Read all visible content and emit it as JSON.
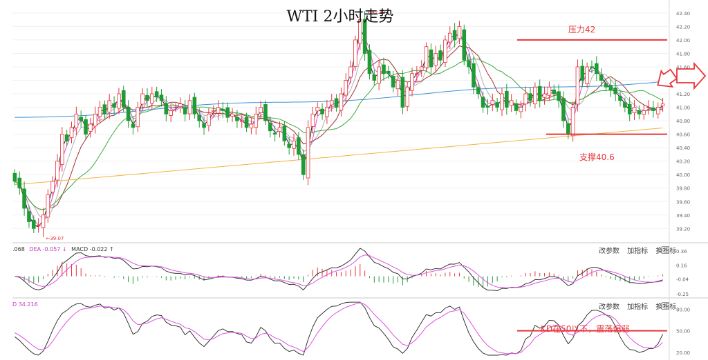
{
  "title": "WTI 2小时走势",
  "colors": {
    "up": "#e8343a",
    "down": "#1e9b34",
    "ma5": "#222222",
    "ma10": "#e050e0",
    "ma20": "#b0b0b0",
    "ma30": "#a03030",
    "ma60": "#3aaa3a",
    "ma120": "#3a8fd8",
    "ma250": "#f5b240",
    "annotation": "#e8343a"
  },
  "annotations": {
    "resistance_label": "压力42",
    "support_label": "支撑40.6",
    "kd_note": "KD在50以下，震荡偏弱"
  },
  "toolbars": {
    "macd": {
      "params": "改参数",
      "add": "加指标",
      "switch": "换指标",
      "close": "×"
    },
    "kd": {
      "params": "改参数",
      "add": "加指标",
      "switch": "换指标",
      "close": "×"
    }
  },
  "indicator_labels": {
    "macd_diff": ".068",
    "macd_dea": "DEA -0.057 ↓",
    "macd_value": "MACD -0.022 ↑",
    "kd_prefix": "D 34.216"
  },
  "chart_data": [
    {
      "type": "candlestick",
      "title": "WTI 2小时走势",
      "y_ticks": [
        "42.40",
        "42.20",
        "42.00",
        "41.80",
        "41.60",
        "41.40",
        "41.20",
        "41.00",
        "40.80",
        "40.60",
        "40.40",
        "40.20",
        "40.00",
        "39.80",
        "39.60",
        "39.40",
        "39.20"
      ],
      "ylim": [
        39.07,
        42.45
      ],
      "high_label": "42.43",
      "low_label": "39.07",
      "support": 40.6,
      "resistance": 42.0,
      "closes": [
        39.9,
        39.8,
        39.5,
        39.3,
        39.2,
        39.25,
        39.4,
        39.7,
        39.9,
        40.2,
        40.6,
        40.5,
        40.7,
        40.9,
        40.8,
        40.6,
        40.75,
        40.9,
        41.0,
        40.9,
        41.1,
        41.0,
        41.2,
        41.0,
        40.8,
        40.7,
        41.0,
        41.2,
        41.1,
        41.2,
        41.15,
        41.1,
        40.9,
        40.95,
        41.0,
        41.05,
        40.9,
        41.1,
        40.9,
        40.8,
        40.7,
        40.9,
        40.95,
        41.0,
        40.95,
        40.85,
        40.9,
        40.8,
        40.8,
        40.7,
        40.75,
        40.9,
        41.0,
        40.8,
        40.65,
        40.6,
        40.7,
        40.5,
        40.4,
        40.5,
        40.3,
        40.0,
        40.7,
        40.9,
        41.0,
        40.9,
        41.0,
        41.1,
        41.0,
        41.2,
        41.4,
        41.6,
        42.0,
        42.3,
        41.8,
        41.5,
        41.4,
        41.6,
        41.5,
        41.5,
        41.3,
        41.4,
        41.0,
        41.3,
        41.5,
        41.5,
        41.6,
        41.9,
        41.6,
        41.8,
        41.7,
        42.0,
        42.1,
        42.0,
        42.2,
        41.7,
        41.6,
        41.3,
        41.2,
        41.0,
        41.0,
        41.1,
        41.0,
        41.2,
        41.0,
        41.1,
        40.95,
        41.0,
        41.2,
        41.1,
        41.3,
        41.1,
        41.2,
        41.3,
        41.2,
        41.1,
        40.8,
        40.6,
        41.0,
        41.6,
        41.4,
        41.6,
        41.6,
        41.5,
        41.4,
        41.3,
        41.25,
        41.2,
        41.1,
        41.0,
        40.9,
        41.0,
        40.9,
        40.95,
        41.0,
        40.95,
        41.0,
        41.05
      ],
      "ma": [
        {
          "period": 5,
          "color": "#222222"
        },
        {
          "period": 10,
          "color": "#e050e0"
        },
        {
          "period": 20,
          "color": "#b0b0b0"
        },
        {
          "period": 30,
          "color": "#a03030"
        },
        {
          "period": 60,
          "color": "#3aaa3a"
        },
        {
          "period": 120,
          "color": "#3a8fd8"
        },
        {
          "period": 250,
          "color": "#f5b240"
        }
      ]
    },
    {
      "type": "macd",
      "y_ticks": [
        "0.36",
        "0.16",
        "-0.04",
        "-0.25"
      ],
      "ylim": [
        -0.27,
        0.4
      ]
    },
    {
      "type": "kd",
      "y_ticks": [
        "80.00",
        "50.00",
        "20.00"
      ],
      "ylim": [
        15,
        92
      ]
    }
  ]
}
